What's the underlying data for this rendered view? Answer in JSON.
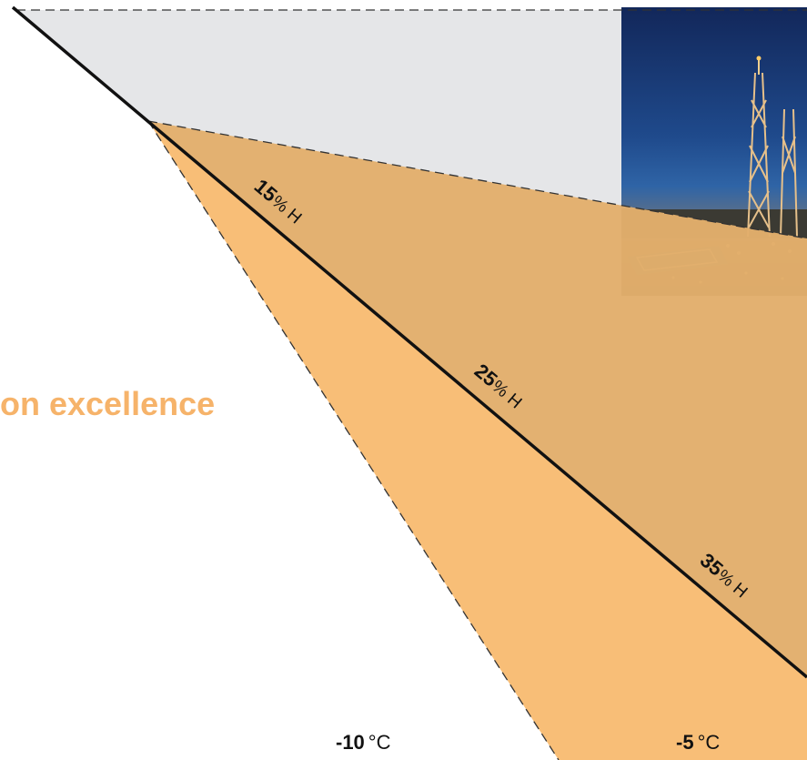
{
  "headline": "on excellence",
  "zones": {
    "outer_color": "#E5E6E8",
    "middle_color": "#E2AE6C",
    "inner_color": "#F8BE77"
  },
  "humidity_labels": [
    {
      "value": "15",
      "unit": "% H"
    },
    {
      "value": "25",
      "unit": "% H"
    },
    {
      "value": "35",
      "unit": "% H"
    }
  ],
  "temperature_labels": [
    {
      "value": "-10",
      "unit": "°C"
    },
    {
      "value": "-5",
      "unit": "°C"
    }
  ],
  "photo": {
    "subject": "offshore oil platform at dusk"
  }
}
